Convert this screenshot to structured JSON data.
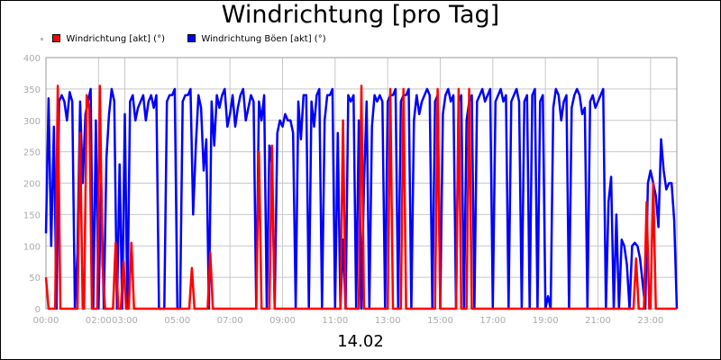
{
  "chart_data": {
    "type": "line",
    "title": "Windrichtung [pro Tag]",
    "xlabel": "14.02",
    "ylabel": "",
    "ylim": [
      0,
      400
    ],
    "xlim": [
      0,
      24
    ],
    "yticks": [
      "0",
      "50",
      "100",
      "150",
      "200",
      "250",
      "300",
      "350",
      "400"
    ],
    "xticks": [
      {
        "x": 0,
        "label": "00:00"
      },
      {
        "x": 2,
        "label": "02:00"
      },
      {
        "x": 3,
        "label": "03:00"
      },
      {
        "x": 5,
        "label": "05:00"
      },
      {
        "x": 7,
        "label": "07:00"
      },
      {
        "x": 9,
        "label": "09:00"
      },
      {
        "x": 11,
        "label": "11:00"
      },
      {
        "x": 13,
        "label": "13:00"
      },
      {
        "x": 15,
        "label": "15:00"
      },
      {
        "x": 17,
        "label": "17:00"
      },
      {
        "x": 19,
        "label": "19:00"
      },
      {
        "x": 21,
        "label": "21:00"
      },
      {
        "x": 23,
        "label": "23:00"
      }
    ],
    "grid": true,
    "legend_position": "top-left",
    "series": [
      {
        "name": "Windrichtung [akt] (°)",
        "color": "#ff0000",
        "points": [
          [
            0.0,
            50
          ],
          [
            0.1,
            0
          ],
          [
            0.35,
            0
          ],
          [
            0.45,
            355
          ],
          [
            0.55,
            0
          ],
          [
            1.2,
            0
          ],
          [
            1.3,
            280
          ],
          [
            1.4,
            0
          ],
          [
            1.45,
            0
          ],
          [
            1.55,
            340
          ],
          [
            1.65,
            320
          ],
          [
            1.75,
            0
          ],
          [
            1.95,
            0
          ],
          [
            2.05,
            355
          ],
          [
            2.15,
            70
          ],
          [
            2.25,
            0
          ],
          [
            2.55,
            0
          ],
          [
            2.65,
            105
          ],
          [
            2.75,
            0
          ],
          [
            2.85,
            0
          ],
          [
            2.95,
            75
          ],
          [
            3.05,
            0
          ],
          [
            3.15,
            0
          ],
          [
            3.25,
            105
          ],
          [
            3.35,
            0
          ],
          [
            5.45,
            0
          ],
          [
            5.55,
            65
          ],
          [
            5.65,
            0
          ],
          [
            6.15,
            0
          ],
          [
            6.25,
            90
          ],
          [
            6.35,
            0
          ],
          [
            8.0,
            0
          ],
          [
            8.1,
            250
          ],
          [
            8.2,
            0
          ],
          [
            8.5,
            0
          ],
          [
            8.6,
            260
          ],
          [
            8.7,
            0
          ],
          [
            11.2,
            0
          ],
          [
            11.3,
            300
          ],
          [
            11.4,
            0
          ],
          [
            11.9,
            0
          ],
          [
            12.0,
            355
          ],
          [
            12.1,
            0
          ],
          [
            13.0,
            0
          ],
          [
            13.1,
            350
          ],
          [
            13.2,
            0
          ],
          [
            13.5,
            0
          ],
          [
            13.6,
            350
          ],
          [
            13.7,
            0
          ],
          [
            14.8,
            0
          ],
          [
            14.9,
            350
          ],
          [
            15.0,
            0
          ],
          [
            15.6,
            0
          ],
          [
            15.7,
            350
          ],
          [
            15.8,
            0
          ],
          [
            16.0,
            0
          ],
          [
            16.1,
            350
          ],
          [
            16.2,
            0
          ],
          [
            22.35,
            0
          ],
          [
            22.45,
            80
          ],
          [
            22.55,
            0
          ],
          [
            22.75,
            0
          ],
          [
            22.85,
            170
          ],
          [
            22.95,
            0
          ],
          [
            23.0,
            0
          ],
          [
            23.1,
            200
          ],
          [
            23.2,
            0
          ],
          [
            24.0,
            0
          ]
        ]
      },
      {
        "name": "Windrichtung Böen [akt] (°)",
        "color": "#0000ff",
        "points": [
          [
            0.0,
            120
          ],
          [
            0.1,
            335
          ],
          [
            0.2,
            100
          ],
          [
            0.3,
            290
          ],
          [
            0.4,
            0
          ],
          [
            0.5,
            330
          ],
          [
            0.6,
            340
          ],
          [
            0.7,
            330
          ],
          [
            0.8,
            300
          ],
          [
            0.9,
            345
          ],
          [
            1.0,
            330
          ],
          [
            1.1,
            0
          ],
          [
            1.2,
            90
          ],
          [
            1.3,
            330
          ],
          [
            1.4,
            200
          ],
          [
            1.5,
            310
          ],
          [
            1.6,
            330
          ],
          [
            1.7,
            350
          ],
          [
            1.8,
            0
          ],
          [
            1.9,
            300
          ],
          [
            2.0,
            0
          ],
          [
            2.1,
            200
          ],
          [
            2.2,
            0
          ],
          [
            2.3,
            240
          ],
          [
            2.4,
            310
          ],
          [
            2.5,
            350
          ],
          [
            2.6,
            330
          ],
          [
            2.7,
            0
          ],
          [
            2.8,
            230
          ],
          [
            2.9,
            0
          ],
          [
            3.0,
            310
          ],
          [
            3.1,
            0
          ],
          [
            3.2,
            330
          ],
          [
            3.3,
            340
          ],
          [
            3.4,
            300
          ],
          [
            3.5,
            320
          ],
          [
            3.6,
            330
          ],
          [
            3.7,
            340
          ],
          [
            3.8,
            300
          ],
          [
            3.9,
            330
          ],
          [
            4.0,
            340
          ],
          [
            4.1,
            320
          ],
          [
            4.2,
            340
          ],
          [
            4.3,
            0
          ],
          [
            4.5,
            0
          ],
          [
            4.6,
            330
          ],
          [
            4.7,
            340
          ],
          [
            4.8,
            340
          ],
          [
            4.9,
            350
          ],
          [
            5.0,
            0
          ],
          [
            5.1,
            0
          ],
          [
            5.2,
            330
          ],
          [
            5.3,
            340
          ],
          [
            5.4,
            340
          ],
          [
            5.5,
            350
          ],
          [
            5.6,
            150
          ],
          [
            5.7,
            260
          ],
          [
            5.8,
            340
          ],
          [
            5.9,
            320
          ],
          [
            6.0,
            220
          ],
          [
            6.1,
            270
          ],
          [
            6.2,
            0
          ],
          [
            6.3,
            330
          ],
          [
            6.4,
            260
          ],
          [
            6.5,
            340
          ],
          [
            6.6,
            320
          ],
          [
            6.7,
            340
          ],
          [
            6.8,
            350
          ],
          [
            6.9,
            290
          ],
          [
            7.0,
            310
          ],
          [
            7.1,
            340
          ],
          [
            7.2,
            290
          ],
          [
            7.3,
            320
          ],
          [
            7.4,
            340
          ],
          [
            7.5,
            350
          ],
          [
            7.6,
            300
          ],
          [
            7.7,
            320
          ],
          [
            7.8,
            340
          ],
          [
            7.9,
            330
          ],
          [
            8.0,
            0
          ],
          [
            8.1,
            330
          ],
          [
            8.2,
            300
          ],
          [
            8.3,
            340
          ],
          [
            8.4,
            0
          ],
          [
            8.5,
            260
          ],
          [
            8.6,
            230
          ],
          [
            8.7,
            0
          ],
          [
            8.8,
            280
          ],
          [
            8.9,
            300
          ],
          [
            9.0,
            290
          ],
          [
            9.1,
            310
          ],
          [
            9.2,
            300
          ],
          [
            9.3,
            300
          ],
          [
            9.4,
            280
          ],
          [
            9.5,
            0
          ],
          [
            9.6,
            330
          ],
          [
            9.7,
            270
          ],
          [
            9.8,
            340
          ],
          [
            9.9,
            340
          ],
          [
            10.0,
            0
          ],
          [
            10.1,
            330
          ],
          [
            10.2,
            290
          ],
          [
            10.3,
            340
          ],
          [
            10.4,
            350
          ],
          [
            10.5,
            0
          ],
          [
            10.6,
            300
          ],
          [
            10.7,
            340
          ],
          [
            10.8,
            340
          ],
          [
            10.9,
            350
          ],
          [
            11.0,
            0
          ],
          [
            11.1,
            280
          ],
          [
            11.2,
            0
          ],
          [
            11.3,
            110
          ],
          [
            11.4,
            0
          ],
          [
            11.5,
            340
          ],
          [
            11.6,
            330
          ],
          [
            11.7,
            340
          ],
          [
            11.8,
            0
          ],
          [
            11.9,
            300
          ],
          [
            12.0,
            0
          ],
          [
            12.1,
            200
          ],
          [
            12.2,
            330
          ],
          [
            12.3,
            0
          ],
          [
            12.4,
            290
          ],
          [
            12.5,
            340
          ],
          [
            12.6,
            330
          ],
          [
            12.7,
            340
          ],
          [
            12.8,
            330
          ],
          [
            12.9,
            0
          ],
          [
            13.0,
            330
          ],
          [
            13.1,
            340
          ],
          [
            13.2,
            340
          ],
          [
            13.3,
            350
          ],
          [
            13.4,
            0
          ],
          [
            13.5,
            330
          ],
          [
            13.6,
            340
          ],
          [
            13.7,
            340
          ],
          [
            13.8,
            350
          ],
          [
            13.9,
            0
          ],
          [
            14.0,
            300
          ],
          [
            14.1,
            340
          ],
          [
            14.2,
            310
          ],
          [
            14.3,
            330
          ],
          [
            14.4,
            340
          ],
          [
            14.5,
            350
          ],
          [
            14.6,
            340
          ],
          [
            14.7,
            0
          ],
          [
            14.8,
            330
          ],
          [
            14.9,
            340
          ],
          [
            15.0,
            0
          ],
          [
            15.1,
            310
          ],
          [
            15.2,
            340
          ],
          [
            15.3,
            350
          ],
          [
            15.4,
            330
          ],
          [
            15.5,
            340
          ],
          [
            15.6,
            0
          ],
          [
            15.7,
            330
          ],
          [
            15.8,
            340
          ],
          [
            15.9,
            0
          ],
          [
            16.0,
            300
          ],
          [
            16.1,
            330
          ],
          [
            16.2,
            340
          ],
          [
            16.3,
            0
          ],
          [
            16.4,
            330
          ],
          [
            16.5,
            340
          ],
          [
            16.6,
            350
          ],
          [
            16.7,
            330
          ],
          [
            16.8,
            340
          ],
          [
            16.9,
            350
          ],
          [
            17.0,
            0
          ],
          [
            17.1,
            330
          ],
          [
            17.2,
            340
          ],
          [
            17.3,
            350
          ],
          [
            17.4,
            330
          ],
          [
            17.5,
            340
          ],
          [
            17.6,
            0
          ],
          [
            17.7,
            330
          ],
          [
            17.8,
            340
          ],
          [
            17.9,
            350
          ],
          [
            18.0,
            330
          ],
          [
            18.1,
            0
          ],
          [
            18.2,
            330
          ],
          [
            18.3,
            340
          ],
          [
            18.4,
            0
          ],
          [
            18.5,
            340
          ],
          [
            18.6,
            350
          ],
          [
            18.7,
            0
          ],
          [
            18.8,
            330
          ],
          [
            18.9,
            340
          ],
          [
            19.0,
            0
          ],
          [
            19.1,
            20
          ],
          [
            19.2,
            0
          ],
          [
            19.3,
            320
          ],
          [
            19.4,
            350
          ],
          [
            19.5,
            340
          ],
          [
            19.6,
            300
          ],
          [
            19.7,
            330
          ],
          [
            19.8,
            340
          ],
          [
            19.9,
            0
          ],
          [
            20.0,
            320
          ],
          [
            20.1,
            340
          ],
          [
            20.2,
            350
          ],
          [
            20.3,
            340
          ],
          [
            20.4,
            310
          ],
          [
            20.5,
            320
          ],
          [
            20.6,
            0
          ],
          [
            20.7,
            330
          ],
          [
            20.8,
            340
          ],
          [
            20.9,
            320
          ],
          [
            21.0,
            330
          ],
          [
            21.1,
            340
          ],
          [
            21.2,
            350
          ],
          [
            21.3,
            0
          ],
          [
            21.4,
            170
          ],
          [
            21.5,
            210
          ],
          [
            21.6,
            0
          ],
          [
            21.7,
            150
          ],
          [
            21.8,
            0
          ],
          [
            21.9,
            110
          ],
          [
            22.0,
            100
          ],
          [
            22.1,
            70
          ],
          [
            22.2,
            0
          ],
          [
            22.3,
            100
          ],
          [
            22.4,
            105
          ],
          [
            22.5,
            100
          ],
          [
            22.6,
            80
          ],
          [
            22.7,
            40
          ],
          [
            22.8,
            0
          ],
          [
            22.9,
            200
          ],
          [
            23.0,
            220
          ],
          [
            23.1,
            200
          ],
          [
            23.2,
            180
          ],
          [
            23.3,
            130
          ],
          [
            23.4,
            270
          ],
          [
            23.5,
            220
          ],
          [
            23.6,
            190
          ],
          [
            23.7,
            200
          ],
          [
            23.8,
            200
          ],
          [
            23.9,
            140
          ],
          [
            24.0,
            0
          ]
        ]
      }
    ]
  }
}
